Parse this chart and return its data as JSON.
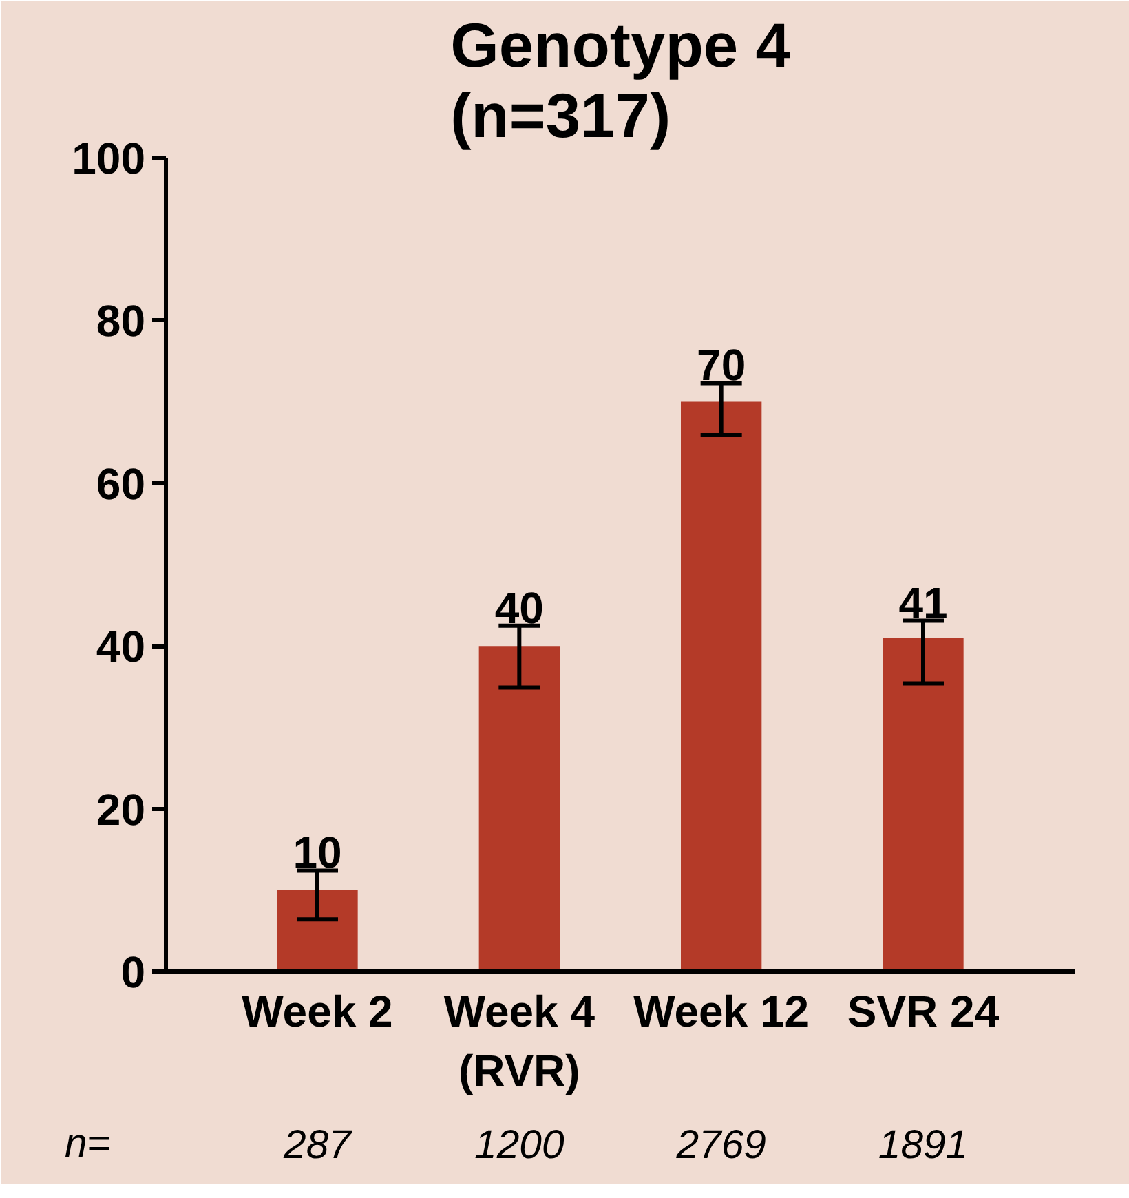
{
  "chart_data": {
    "type": "bar",
    "title": "Genotype 4\n(n=317)",
    "categories": [
      "Week 2",
      "Week 4\n(RVR)",
      "Week 12",
      "SVR 24"
    ],
    "values": [
      10,
      40,
      70,
      41
    ],
    "color": "#b43a28",
    "errors": [
      [
        6.4,
        12.4
      ],
      [
        34.9,
        42.5
      ],
      [
        65.9,
        72.3
      ],
      [
        35.4,
        43.1
      ]
    ],
    "data_labels": true,
    "ylim": [
      0,
      100
    ],
    "yticks": [
      0,
      20,
      40,
      60,
      80,
      100
    ],
    "grid": false,
    "annotations": [
      "n=",
      "287",
      "1200",
      "2769",
      "1891"
    ]
  }
}
